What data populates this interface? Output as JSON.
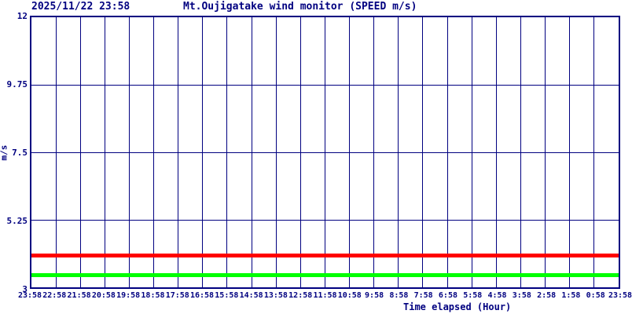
{
  "header": {
    "datetime": "2025/11/22 23:58",
    "title": "Mt.Oujigatake wind monitor (SPEED m/s)"
  },
  "chart_data": {
    "type": "line",
    "title": "Mt.Oujigatake wind monitor (SPEED m/s)",
    "timestamp": "2025/11/22 23:58",
    "xlabel": "Time elapsed (Hour)",
    "ylabel": "m/s",
    "ylim": [
      3,
      12
    ],
    "yticks": [
      12,
      9.75,
      7.5,
      5.25,
      3
    ],
    "x_tick_labels": [
      "23:58",
      "22:58",
      "21:58",
      "20:58",
      "19:58",
      "18:58",
      "17:58",
      "16:58",
      "15:58",
      "14:58",
      "13:58",
      "12:58",
      "11:58",
      "10:58",
      "9:58",
      "8:58",
      "7:58",
      "6:58",
      "5:58",
      "4:58",
      "3:58",
      "2:58",
      "1:58",
      "0:58",
      "23:58"
    ],
    "grid": true,
    "legend": "none",
    "series": [
      {
        "name": "red-line",
        "color": "#ff0000",
        "shape": "constant",
        "value": 4.05
      },
      {
        "name": "green-line",
        "color": "#00ff00",
        "shape": "constant",
        "value": 3.4
      }
    ],
    "colors": {
      "axis": "#000080",
      "grid": "#000080",
      "text": "#000080",
      "background": "#ffffff"
    }
  }
}
